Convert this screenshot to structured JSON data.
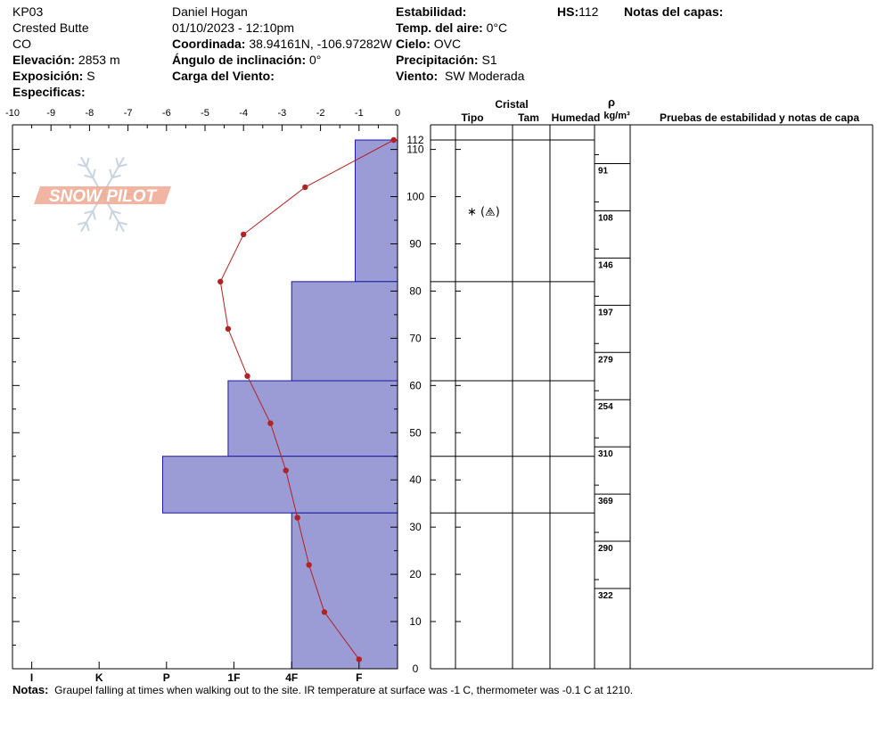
{
  "header": {
    "site_id": "KP03",
    "location": "Crested Butte",
    "state": "CO",
    "elevation_label": "Elevación:",
    "elevation_value": "2853 m",
    "aspect_label": "Exposición:",
    "aspect_value": "S",
    "specifics_label": "Especificas:",
    "observer": "Daniel Hogan",
    "datetime": "01/10/2023 - 12:10pm",
    "coord_label": "Coordinada:",
    "coord_value": "38.94161N, -106.97282W",
    "slope_label": "Ángulo de inclinación:",
    "slope_value": "0°",
    "wind_load_label": "Carga del Viento:",
    "stability_label": "Estabilidad:",
    "air_temp_label": "Temp. del aire:",
    "air_temp_value": "0°C",
    "sky_label": "Cielo:",
    "sky_value": "OVC",
    "precip_label": "Precipitación:",
    "precip_value": "S1",
    "wind_label": "Viento:",
    "wind_value": "SW Moderada",
    "hs_label": "HS:",
    "hs_value": "112",
    "layer_notes_label": "Notas del capas:"
  },
  "logo": {
    "text": "SNOW PILOT"
  },
  "table": {
    "crystal_header": "Cristal",
    "type_header": "Tipo",
    "size_header": "Tam",
    "moisture_header": "Humedad",
    "density_symbol": "ρ",
    "density_unit": "kg/m³",
    "tests_header": "Pruebas de estabilidad y notas de capa",
    "crystal_symbol": "∗ (⧌)",
    "crystal_symbol_height": 97,
    "density_readings": [
      {
        "depth_top": 107,
        "value": "91"
      },
      {
        "depth_top": 97,
        "value": "108"
      },
      {
        "depth_top": 87,
        "value": "146"
      },
      {
        "depth_top": 77,
        "value": "197"
      },
      {
        "depth_top": 67,
        "value": "279"
      },
      {
        "depth_top": 57,
        "value": "254"
      },
      {
        "depth_top": 47,
        "value": "310"
      },
      {
        "depth_top": 37,
        "value": "369"
      },
      {
        "depth_top": 27,
        "value": "290"
      },
      {
        "depth_top": 17,
        "value": "322"
      }
    ]
  },
  "notes": {
    "label": "Notas:",
    "text": "Graupel falling at times when walking out to the site. IR temperature at surface was -1 C, thermometer was -0.1 C at 1210."
  },
  "chart_data": {
    "type": "snow-profile",
    "temperature_axis": {
      "ticks": [
        -10,
        -9,
        -8,
        -7,
        -6,
        -5,
        -4,
        -3,
        -2,
        -1,
        0
      ],
      "range": [
        -10,
        0
      ]
    },
    "height_axis": {
      "ticks": [
        0,
        10,
        20,
        30,
        40,
        50,
        60,
        70,
        80,
        90,
        100,
        110
      ],
      "top_label": "112",
      "range": [
        0,
        112
      ]
    },
    "hardness_axis": {
      "ticks": [
        "I",
        "K",
        "P",
        "1F",
        "4F",
        "F"
      ],
      "tick_values": [
        -9.5,
        -7.75,
        -6,
        -4.25,
        -2.75,
        -1
      ]
    },
    "hardness_layers": [
      {
        "bottom": 82,
        "top": 112,
        "hardness_value": -1.1
      },
      {
        "bottom": 61,
        "top": 82,
        "hardness_value": -2.75
      },
      {
        "bottom": 45,
        "top": 61,
        "hardness_value": -4.4
      },
      {
        "bottom": 33,
        "top": 45,
        "hardness_value": -6.1
      },
      {
        "bottom": 0,
        "top": 33,
        "hardness_value": -2.75
      }
    ],
    "layer_boundaries": [
      112,
      82,
      61,
      45,
      33
    ],
    "temperature_profile": {
      "heights": [
        112,
        102,
        92,
        82,
        72,
        62,
        52,
        42,
        32,
        22,
        12,
        2
      ],
      "temps": [
        -0.1,
        -2.4,
        -4.0,
        -4.6,
        -4.4,
        -3.9,
        -3.3,
        -2.9,
        -2.6,
        -2.3,
        -1.9,
        -1.0
      ]
    },
    "colors": {
      "hardness_fill": "#9b9bd6",
      "hardness_stroke": "#1a1aa0",
      "temp_line": "#b22222",
      "logo_color": "#f0a890"
    }
  }
}
